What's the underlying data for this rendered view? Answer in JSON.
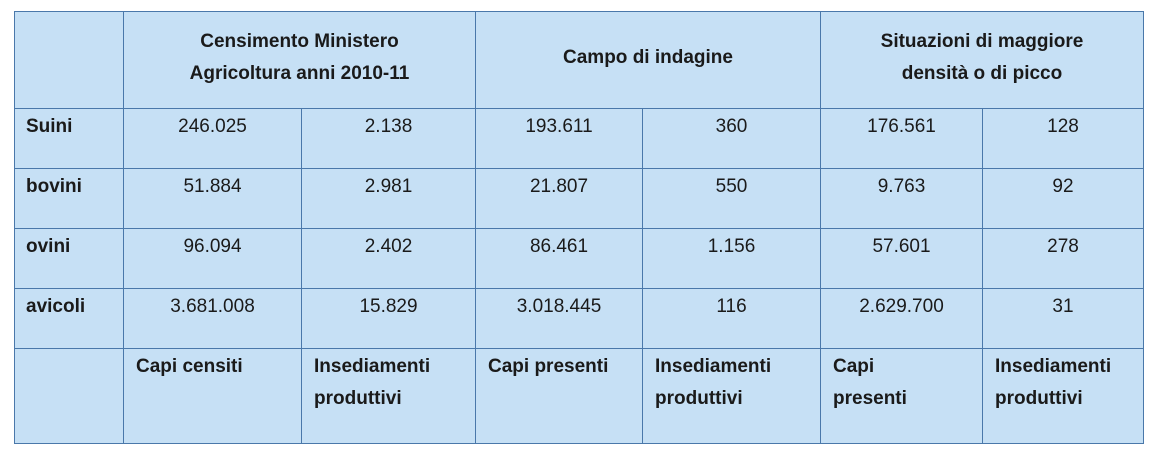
{
  "table": {
    "groups": [
      {
        "line1": "Censimento Ministero",
        "line2": "Agricoltura anni 2010-11"
      },
      {
        "line1": "Campo di indagine",
        "line2": ""
      },
      {
        "line1": "Situazioni di maggiore",
        "line2": "densità o di picco"
      }
    ],
    "rows": [
      {
        "label": "Suini",
        "cells": [
          "246.025",
          "2.138",
          "193.611",
          "360",
          "176.561",
          "128"
        ]
      },
      {
        "label": "bovini",
        "cells": [
          "51.884",
          "2.981",
          "21.807",
          "550",
          "9.763",
          "92"
        ]
      },
      {
        "label": "ovini",
        "cells": [
          "96.094",
          "2.402",
          "86.461",
          "1.156",
          "57.601",
          "278"
        ]
      },
      {
        "label": "avicoli",
        "cells": [
          "3.681.008",
          "15.829",
          "3.018.445",
          "116",
          "2.629.700",
          "31"
        ]
      }
    ],
    "footer": [
      {
        "line1": "Capi censiti",
        "line2": ""
      },
      {
        "line1": "Insediamenti",
        "line2": "produttivi"
      },
      {
        "line1": "Capi presenti",
        "line2": ""
      },
      {
        "line1": "Insediamenti",
        "line2": "produttivi"
      },
      {
        "line1": "Capi",
        "line2": "presenti"
      },
      {
        "line1": "Insediamenti",
        "line2": "produttivi"
      }
    ]
  },
  "colors": {
    "cell_background": "#c6e0f5",
    "border": "#4a78aa"
  }
}
